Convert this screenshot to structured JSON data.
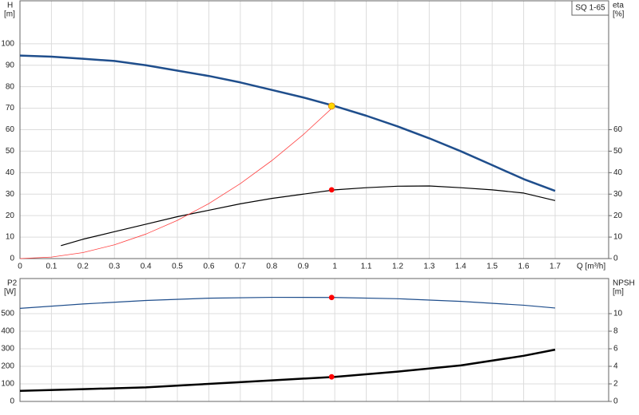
{
  "chart_data": [
    {
      "type": "line",
      "ylabel": [
        "H",
        "[m]"
      ],
      "y2label": [
        "eta",
        "[%]"
      ],
      "xlabel": "Q [m³/h]",
      "legend_label": "SQ 1-65",
      "xlim": [
        0,
        1.87
      ],
      "xticks": [
        0,
        0.1,
        0.2,
        0.3,
        0.4,
        0.5,
        0.6,
        0.7,
        0.8,
        0.9,
        1.0,
        1.1,
        1.2,
        1.3,
        1.4,
        1.5,
        1.6,
        1.7
      ],
      "ylim": [
        0,
        120
      ],
      "yticks": [
        0,
        10,
        20,
        30,
        40,
        50,
        60,
        70,
        80,
        90,
        100
      ],
      "y2lim": [
        0,
        120
      ],
      "y2ticks": [
        0,
        10,
        20,
        30,
        40,
        50,
        60
      ],
      "grid": true,
      "series": [
        {
          "color": "#1f4e8c",
          "width": 2.5,
          "x": [
            0,
            0.1,
            0.2,
            0.3,
            0.4,
            0.5,
            0.6,
            0.7,
            0.8,
            0.9,
            1.0,
            1.1,
            1.2,
            1.3,
            1.4,
            1.5,
            1.6,
            1.7
          ],
          "values": [
            94.5,
            94,
            93,
            92,
            90,
            87.5,
            85,
            82,
            78.5,
            75,
            71,
            66.5,
            61.5,
            56,
            50,
            43.5,
            37,
            31.5
          ],
          "point": {
            "x": 0.99,
            "y": 71,
            "color": "#ffd700"
          }
        },
        {
          "color": "#000000",
          "width": 1.2,
          "axis": "y2",
          "x": [
            0.13,
            0.2,
            0.3,
            0.4,
            0.5,
            0.6,
            0.7,
            0.8,
            0.9,
            1.0,
            1.1,
            1.2,
            1.3,
            1.4,
            1.5,
            1.6,
            1.7
          ],
          "values": [
            6,
            9,
            12.5,
            16,
            19.5,
            22.5,
            25.5,
            28,
            30,
            32,
            33,
            33.7,
            33.8,
            33,
            32,
            30.5,
            27
          ],
          "point": {
            "x": 0.99,
            "y": 32,
            "color": "#ff0000"
          }
        },
        {
          "color": "#ff4040",
          "width": 0.8,
          "x": [
            0,
            0.1,
            0.2,
            0.3,
            0.4,
            0.5,
            0.6,
            0.7,
            0.8,
            0.9,
            1.0
          ],
          "values": [
            0,
            0.7,
            2.8,
            6.4,
            11.4,
            17.8,
            25.6,
            34.9,
            45.6,
            57.7,
            71.2
          ]
        }
      ]
    },
    {
      "type": "line",
      "ylabel": [
        "P2",
        "[W]"
      ],
      "y2label": [
        "NPSH",
        "[m]"
      ],
      "xlim": [
        0,
        1.87
      ],
      "xticks": [
        0,
        0.1,
        0.2,
        0.3,
        0.4,
        0.5,
        0.6,
        0.7,
        0.8,
        0.9,
        1.0,
        1.1,
        1.2,
        1.3,
        1.4,
        1.5,
        1.6,
        1.7
      ],
      "ylim": [
        0,
        700
      ],
      "yticks": [
        0,
        100,
        200,
        300,
        400,
        500
      ],
      "y2lim": [
        0,
        14
      ],
      "y2ticks": [
        0,
        2,
        4,
        6,
        8,
        10
      ],
      "grid": true,
      "series": [
        {
          "color": "#1f4e8c",
          "width": 1.2,
          "x": [
            0,
            0.2,
            0.4,
            0.6,
            0.8,
            1.0,
            1.2,
            1.4,
            1.6,
            1.7
          ],
          "values": [
            530,
            555,
            575,
            588,
            593,
            592,
            585,
            570,
            548,
            532
          ],
          "point": {
            "x": 0.99,
            "y": 592,
            "color": "#ff0000"
          }
        },
        {
          "color": "#000000",
          "width": 2.5,
          "axis": "y2",
          "x": [
            0,
            0.2,
            0.4,
            0.6,
            0.8,
            1.0,
            1.2,
            1.4,
            1.6,
            1.7
          ],
          "values": [
            1.2,
            1.4,
            1.6,
            2.0,
            2.4,
            2.8,
            3.4,
            4.1,
            5.2,
            5.9
          ],
          "point": {
            "x": 0.99,
            "y": 2.8,
            "color": "#ff0000"
          }
        }
      ]
    }
  ]
}
